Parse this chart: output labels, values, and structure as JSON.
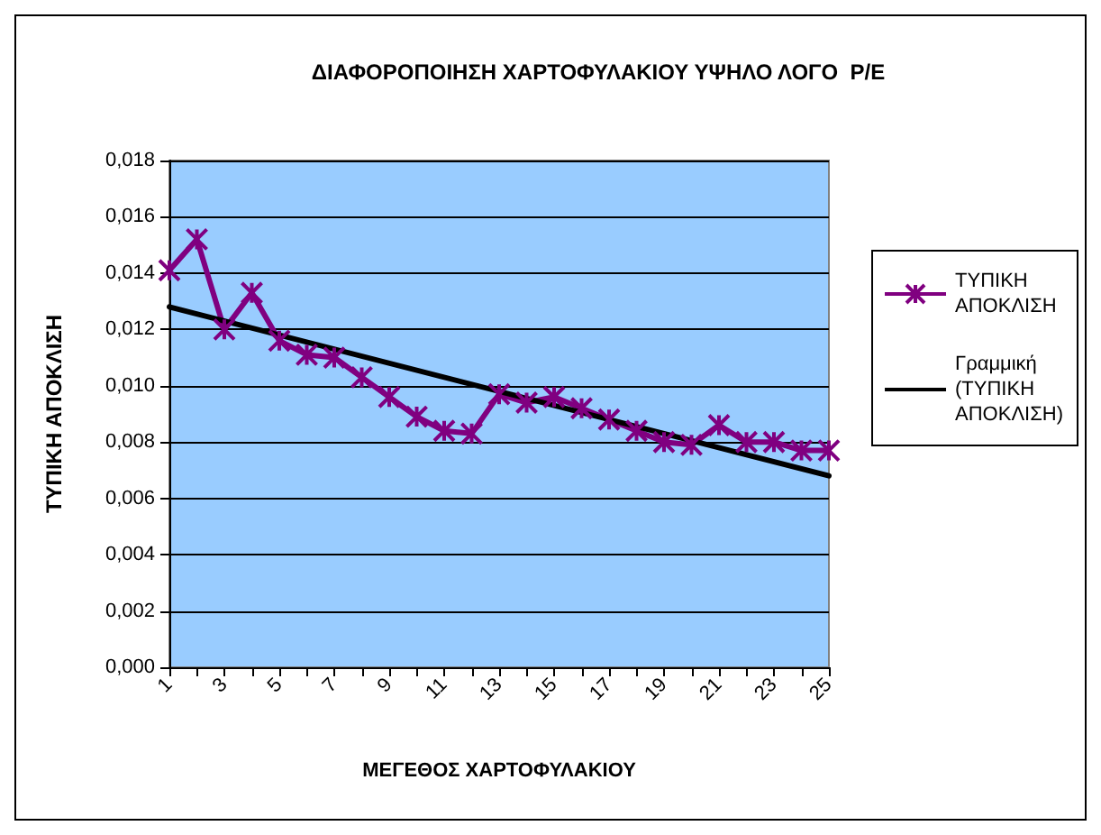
{
  "chart_data": {
    "type": "line",
    "title": "ΔΙΑΦΟΡΟΠΟΙΗΣΗ ΧΑΡΤΟΦΥΛΑΚΙΟΥ ΥΨΗΛΟ ΛΟΓΟ  P/E",
    "xlabel": "ΜΕΓΕΘΟΣ ΧΑΡΤΟΦΥΛΑΚΙΟΥ",
    "ylabel": "ΤΥΠΙΚΗ ΑΠΟΚΛΙΣΗ",
    "x": [
      1,
      2,
      3,
      4,
      5,
      6,
      7,
      8,
      9,
      10,
      11,
      12,
      13,
      14,
      15,
      16,
      17,
      18,
      19,
      20,
      21,
      22,
      23,
      24,
      25
    ],
    "series": [
      {
        "name": "ΤΥΠΙΚΗ ΑΠΟΚΛΙΣΗ",
        "color": "#800080",
        "marker": "cross",
        "values": [
          0.0141,
          0.0152,
          0.012,
          0.0133,
          0.0116,
          0.0111,
          0.011,
          0.0103,
          0.0096,
          0.0089,
          0.0084,
          0.0083,
          0.0097,
          0.0094,
          0.0096,
          0.0092,
          0.0088,
          0.0084,
          0.008,
          0.0079,
          0.0086,
          0.008,
          0.008,
          0.0077,
          0.0077
        ]
      },
      {
        "name": "Γραμμική (ΤΥΠΙΚΗ ΑΠΟΚΛΙΣΗ)",
        "color": "#000000",
        "marker": "none",
        "x": [
          1,
          25
        ],
        "values": [
          0.0128,
          0.0068
        ]
      }
    ],
    "xlim": [
      1,
      25
    ],
    "xticks": [
      1,
      {
        "value": 2,
        "label": null
      },
      3,
      {
        "value": 4,
        "label": null
      },
      5,
      {
        "value": 6,
        "label": null
      },
      7,
      {
        "value": 8,
        "label": null
      },
      9,
      {
        "value": 10,
        "label": null
      },
      11,
      {
        "value": 12,
        "label": null
      },
      13,
      {
        "value": 14,
        "label": null
      },
      15,
      {
        "value": 16,
        "label": null
      },
      17,
      {
        "value": 18,
        "label": null
      },
      19,
      {
        "value": 20,
        "label": null
      },
      21,
      {
        "value": 22,
        "label": null
      },
      23,
      {
        "value": 24,
        "label": null
      },
      25
    ],
    "ylim": [
      0,
      0.018
    ],
    "yticks": [
      {
        "value": 0,
        "label": "0,000"
      },
      {
        "value": 0.002,
        "label": "0,002"
      },
      {
        "value": 0.004,
        "label": "0,004"
      },
      {
        "value": 0.006,
        "label": "0,006"
      },
      {
        "value": 0.008,
        "label": "0,008"
      },
      {
        "value": 0.01,
        "label": "0,010"
      },
      {
        "value": 0.012,
        "label": "0,012"
      },
      {
        "value": 0.014,
        "label": "0,014"
      },
      {
        "value": 0.016,
        "label": "0,016"
      },
      {
        "value": 0.018,
        "label": "0,018"
      }
    ],
    "grid": "y",
    "legend": "right",
    "line_style": "solid"
  }
}
